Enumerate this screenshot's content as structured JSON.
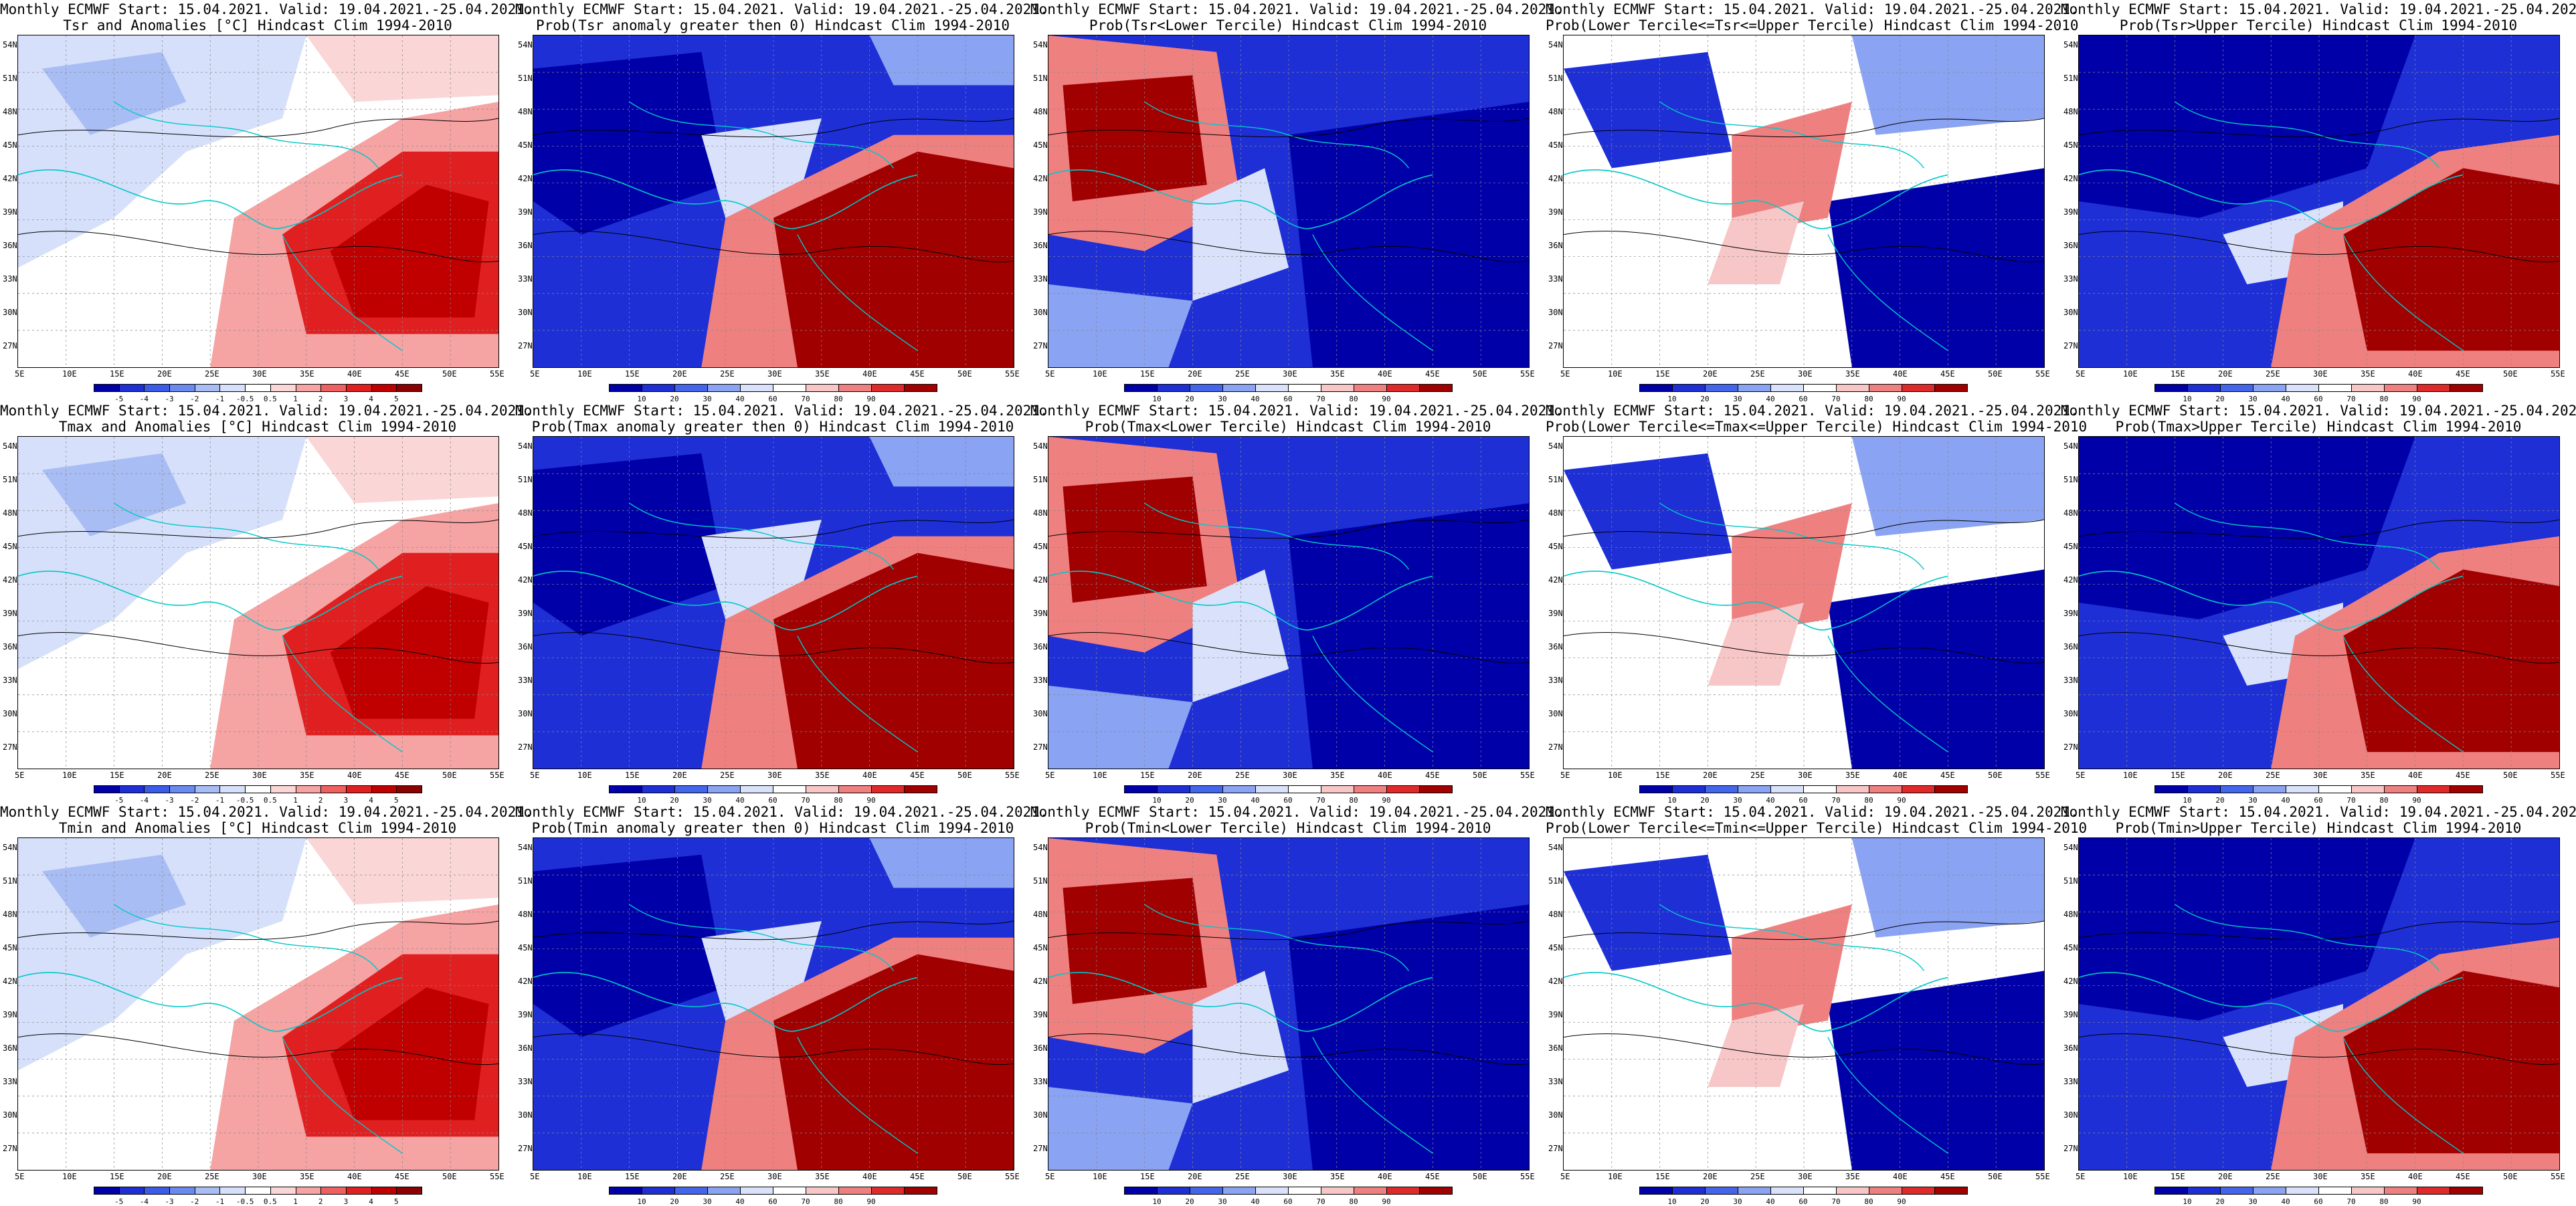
{
  "header": {
    "line1": "Monthly ECMWF Start: 15.04.2021. Valid: 19.04.2021.-25.04.2021."
  },
  "axes": {
    "lat_labels": [
      "54N",
      "51N",
      "48N",
      "45N",
      "42N",
      "39N",
      "36N",
      "33N",
      "30N",
      "27N"
    ],
    "lon_labels": [
      "5E",
      "10E",
      "15E",
      "20E",
      "25E",
      "30E",
      "35E",
      "40E",
      "45E",
      "50E",
      "55E"
    ]
  },
  "colorbars": {
    "anomaly": {
      "labels": [
        "-5",
        "-4",
        "-3",
        "-2",
        "-1",
        "-0.5",
        "0.5",
        "1",
        "2",
        "3",
        "4",
        "5"
      ],
      "colors": [
        "#0000a8",
        "#1e2fd6",
        "#3a5ce8",
        "#6a8af0",
        "#a9bdf5",
        "#d6e0fa",
        "#ffffff",
        "#fad6d6",
        "#f5a3a3",
        "#ef6060",
        "#e02020",
        "#c00000",
        "#8b0000"
      ]
    },
    "probability": {
      "labels": [
        "10",
        "20",
        "30",
        "40",
        "60",
        "70",
        "80",
        "90"
      ],
      "colors": [
        "#0000a8",
        "#1e2fd6",
        "#4466ea",
        "#8aa3f2",
        "#d9e2fa",
        "#ffffff",
        "#f7c7c7",
        "#ef8080",
        "#e02a2a",
        "#a00000"
      ]
    }
  },
  "rows": [
    {
      "variable": "Tsr",
      "panels": [
        {
          "line2": "Tsr and Anomalies [°C] Hindcast Clim 1994-2010",
          "scale": "anomaly",
          "pattern": "anom"
        },
        {
          "line2": "Prob(Tsr anomaly greater then 0) Hindcast Clim 1994-2010",
          "scale": "probability",
          "pattern": "gt0"
        },
        {
          "line2": "Prob(Tsr<Lower Tercile) Hindcast Clim 1994-2010",
          "scale": "probability",
          "pattern": "lower"
        },
        {
          "line2": "Prob(Lower Tercile<=Tsr<=Upper Tercile) Hindcast Clim 1994-2010",
          "scale": "probability",
          "pattern": "mid"
        },
        {
          "line2": "Prob(Tsr>Upper Tercile) Hindcast Clim 1994-2010",
          "scale": "probability",
          "pattern": "upper"
        }
      ]
    },
    {
      "variable": "Tmax",
      "panels": [
        {
          "line2": "Tmax and Anomalies [°C] Hindcast Clim 1994-2010",
          "scale": "anomaly",
          "pattern": "anom"
        },
        {
          "line2": "Prob(Tmax anomaly greater then 0) Hindcast Clim 1994-2010",
          "scale": "probability",
          "pattern": "gt0"
        },
        {
          "line2": "Prob(Tmax<Lower Tercile) Hindcast Clim 1994-2010",
          "scale": "probability",
          "pattern": "lower"
        },
        {
          "line2": "Prob(Lower Tercile<=Tmax<=Upper Tercile) Hindcast Clim 1994-2010",
          "scale": "probability",
          "pattern": "mid"
        },
        {
          "line2": "Prob(Tmax>Upper Tercile) Hindcast Clim 1994-2010",
          "scale": "probability",
          "pattern": "upper"
        }
      ]
    },
    {
      "variable": "Tmin",
      "panels": [
        {
          "line2": "Tmin and Anomalies [°C] Hindcast Clim 1994-2010",
          "scale": "anomaly",
          "pattern": "anom"
        },
        {
          "line2": "Prob(Tmin anomaly greater then 0) Hindcast Clim 1994-2010",
          "scale": "probability",
          "pattern": "gt0"
        },
        {
          "line2": "Prob(Tmin<Lower Tercile) Hindcast Clim 1994-2010",
          "scale": "probability",
          "pattern": "lower"
        },
        {
          "line2": "Prob(Lower Tercile<=Tmin<=Upper Tercile) Hindcast Clim 1994-2010",
          "scale": "probability",
          "pattern": "mid"
        },
        {
          "line2": "Prob(Tmin>Upper Tercile) Hindcast Clim 1994-2010",
          "scale": "probability",
          "pattern": "upper"
        }
      ]
    }
  ]
}
